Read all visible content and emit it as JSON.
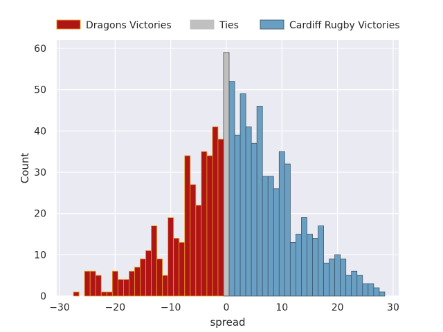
{
  "chart_data": {
    "type": "bar",
    "title": "",
    "xlabel": "spread",
    "ylabel": "Count",
    "xlim": [
      -30.5,
      31
    ],
    "ylim": [
      0,
      62
    ],
    "xticks": [
      -30,
      -20,
      -10,
      0,
      10,
      20,
      30
    ],
    "yticks": [
      0,
      10,
      20,
      30,
      40,
      50,
      60
    ],
    "xtick_labels": [
      "−30",
      "−20",
      "−10",
      "0",
      "10",
      "20",
      "30"
    ],
    "ytick_labels": [
      "0",
      "10",
      "20",
      "30",
      "40",
      "50",
      "60"
    ],
    "grid": true,
    "legend_position": "top",
    "series": [
      {
        "name": "Dragons Victories",
        "color": "#b01515",
        "edge_color": "#e8a020",
        "x": [
          -27,
          -25,
          -24,
          -23,
          -22,
          -21,
          -20,
          -19,
          -18,
          -17,
          -16,
          -15,
          -14,
          -13,
          -12,
          -11,
          -10,
          -9,
          -8,
          -7,
          -6,
          -5,
          -4,
          -3,
          -2,
          -1
        ],
        "values": [
          1,
          6,
          6,
          5,
          1,
          1,
          6,
          4,
          4,
          6,
          7,
          9,
          11,
          17,
          9,
          5,
          19,
          14,
          13,
          34,
          27,
          22,
          35,
          34,
          41,
          38
        ]
      },
      {
        "name": "Ties",
        "color": "#c0c0c0",
        "edge_color": "#4a4a4a",
        "x": [
          0
        ],
        "values": [
          59
        ]
      },
      {
        "name": "Cardiff Rugby Victories",
        "color": "#6a9fc4",
        "edge_color": "#3e5566",
        "x": [
          1,
          2,
          3,
          4,
          5,
          6,
          7,
          8,
          9,
          10,
          11,
          12,
          13,
          14,
          15,
          16,
          17,
          18,
          19,
          20,
          21,
          22,
          23,
          24,
          25,
          26,
          27,
          28
        ],
        "values": [
          52,
          39,
          49,
          41,
          37,
          46,
          29,
          29,
          26,
          35,
          32,
          13,
          15,
          19,
          15,
          14,
          17,
          8,
          9,
          10,
          9,
          5,
          6,
          5,
          3,
          3,
          2,
          1
        ]
      }
    ]
  }
}
